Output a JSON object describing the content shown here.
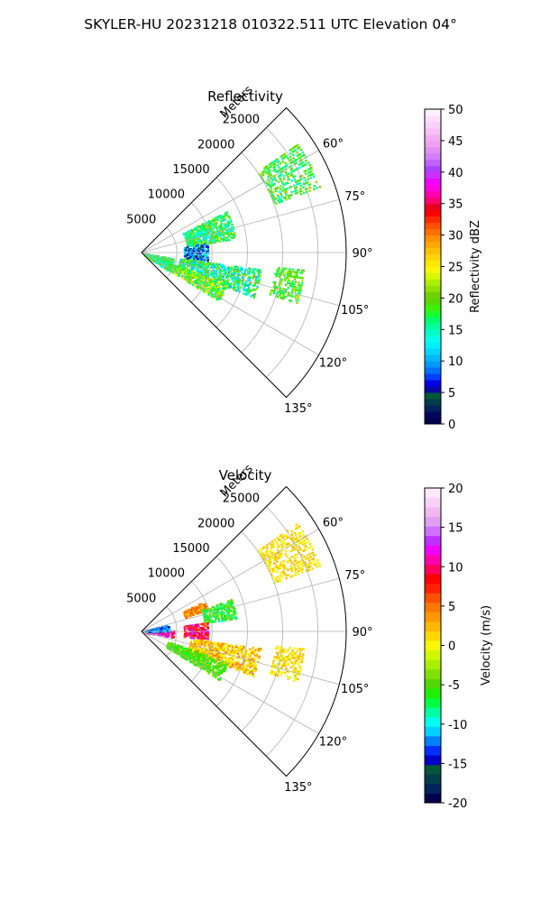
{
  "figure": {
    "suptitle": "SKYLER-HU  20231218  010322.511 UTC Elevation 04°"
  },
  "chart_data": [
    {
      "type": "heatmap",
      "subtype": "polar-sector-ppi",
      "title": "Reflectivity",
      "radial_label": "Meters",
      "r_ticks": [
        5000,
        10000,
        15000,
        20000,
        25000
      ],
      "r_tick_labels": [
        "5000",
        "10000",
        "15000",
        "20000",
        "25000"
      ],
      "r_max": 29000,
      "theta_range_deg": [
        45,
        135
      ],
      "theta_ticks": [
        60,
        75,
        90,
        105,
        120,
        135
      ],
      "theta_tick_labels": [
        "60°",
        "75°",
        "90°",
        "105°",
        "120°",
        "135°"
      ],
      "grid": true,
      "colorbar": {
        "label": "Reflectivity dBZ",
        "range": [
          0,
          50
        ],
        "ticks": [
          0,
          5,
          10,
          15,
          20,
          25,
          30,
          35,
          40,
          45,
          50
        ],
        "tick_labels": [
          "0",
          "5",
          "10",
          "15",
          "20",
          "25",
          "30",
          "35",
          "40",
          "45",
          "50"
        ],
        "placement": "right"
      },
      "echo_regions": [
        {
          "theta_deg": [
            64,
            82
          ],
          "r_m": [
            6500,
            13500
          ],
          "value": 17,
          "spread": 5
        },
        {
          "theta_deg": [
            82,
            97
          ],
          "r_m": [
            6000,
            9500
          ],
          "value": 9,
          "spread": 6
        },
        {
          "theta_deg": [
            98,
            112
          ],
          "r_m": [
            5500,
            17000
          ],
          "value": 16,
          "spread": 6
        },
        {
          "theta_deg": [
            110,
            122
          ],
          "r_m": [
            4000,
            13000
          ],
          "value": 20,
          "spread": 5
        },
        {
          "theta_deg": [
            100,
            125
          ],
          "r_m": [
            500,
            4500
          ],
          "value": 17,
          "spread": 5
        },
        {
          "theta_deg": [
            55,
            70
          ],
          "r_m": [
            20000,
            27000
          ],
          "value": 18,
          "spread": 4
        },
        {
          "theta_deg": [
            96,
            108
          ],
          "r_m": [
            19000,
            23000
          ],
          "value": 19,
          "spread": 4
        }
      ]
    },
    {
      "type": "heatmap",
      "subtype": "polar-sector-ppi",
      "title": "Velocity",
      "radial_label": "Meters",
      "r_ticks": [
        5000,
        10000,
        15000,
        20000,
        25000
      ],
      "r_tick_labels": [
        "5000",
        "10000",
        "15000",
        "20000",
        "25000"
      ],
      "r_max": 29000,
      "theta_range_deg": [
        45,
        135
      ],
      "theta_ticks": [
        60,
        75,
        90,
        105,
        120,
        135
      ],
      "theta_tick_labels": [
        "60°",
        "75°",
        "90°",
        "105°",
        "120°",
        "135°"
      ],
      "grid": true,
      "colorbar": {
        "label": "Velocity (m/s)",
        "range": [
          -20,
          20
        ],
        "ticks": [
          -20,
          -15,
          -10,
          -5,
          0,
          5,
          10,
          15,
          20
        ],
        "tick_labels": [
          "-20",
          "-15",
          "-10",
          "-5",
          "0",
          "5",
          "10",
          "15",
          "20"
        ],
        "placement": "right"
      },
      "echo_regions": [
        {
          "theta_deg": [
            64,
            72
          ],
          "r_m": [
            6500,
            10000
          ],
          "value": 4,
          "spread": 3
        },
        {
          "theta_deg": [
            70,
            82
          ],
          "r_m": [
            9000,
            13500
          ],
          "value": -6,
          "spread": 3
        },
        {
          "theta_deg": [
            82,
            97
          ],
          "r_m": [
            6000,
            9500
          ],
          "value": 9,
          "spread": 4
        },
        {
          "theta_deg": [
            98,
            112
          ],
          "r_m": [
            7000,
            17000
          ],
          "value": 2,
          "spread": 3
        },
        {
          "theta_deg": [
            110,
            122
          ],
          "r_m": [
            4000,
            13000
          ],
          "value": -5,
          "spread": 2
        },
        {
          "theta_deg": [
            88,
            100
          ],
          "r_m": [
            500,
            4500
          ],
          "value": 12,
          "spread": 4
        },
        {
          "theta_deg": [
            75,
            88
          ],
          "r_m": [
            500,
            4000
          ],
          "value": -12,
          "spread": 3
        },
        {
          "theta_deg": [
            55,
            70
          ],
          "r_m": [
            20000,
            27000
          ],
          "value": 1,
          "spread": 2
        },
        {
          "theta_deg": [
            96,
            108
          ],
          "r_m": [
            19000,
            23000
          ],
          "value": 1,
          "spread": 2
        }
      ]
    }
  ]
}
